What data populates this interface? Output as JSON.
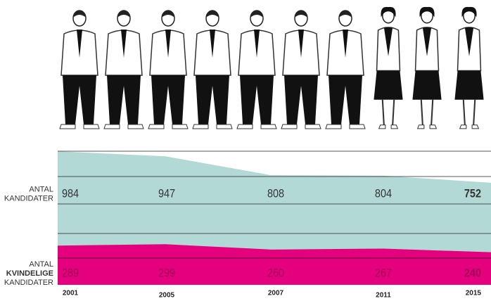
{
  "chart_data": {
    "type": "area",
    "categories": [
      "2001",
      "2005",
      "2007",
      "2011",
      "2015"
    ],
    "series": [
      {
        "label": [
          "ANTAL",
          "KANDIDATER"
        ],
        "color": "#b3d9d6",
        "text_color": "#333333",
        "values": [
          984,
          947,
          808,
          804,
          752
        ]
      },
      {
        "label": [
          "ANTAL",
          "KVINDELIGE",
          "KANDIDATER"
        ],
        "color": "#e5007e",
        "text_color": "#9e0056",
        "values": [
          289,
          299,
          260,
          267,
          240
        ]
      }
    ]
  }
}
